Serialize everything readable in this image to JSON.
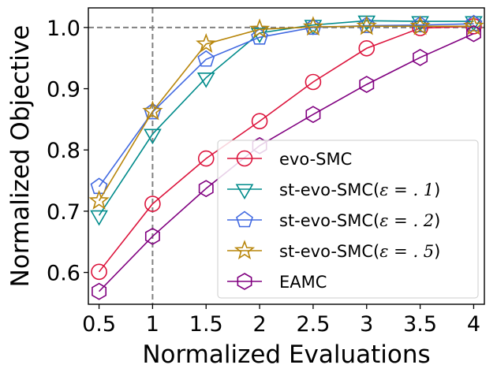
{
  "chart_data": {
    "type": "line",
    "title": "",
    "xlabel": "Normalized Evaluations",
    "ylabel": "Normalized Objective",
    "x": [
      0.5,
      1,
      1.5,
      2,
      2.5,
      3,
      3.5,
      4
    ],
    "x_tick_labels": [
      "0.5",
      "1",
      "1.5",
      "2",
      "2.5",
      "3",
      "3.5",
      "4"
    ],
    "y_ticks": [
      0.6,
      0.7,
      0.8,
      0.9,
      1.0
    ],
    "y_tick_labels": [
      "0.6",
      "0.7",
      "0.8",
      "0.9",
      "1.0"
    ],
    "xlim": [
      0.4,
      4.1
    ],
    "ylim": [
      0.548,
      1.032
    ],
    "grid": false,
    "reference_lines": [
      {
        "orientation": "horizontal",
        "value": 1.0,
        "style": "dashed",
        "color": "#808080"
      },
      {
        "orientation": "vertical",
        "value": 1.0,
        "style": "dashed",
        "color": "#808080"
      }
    ],
    "legend_position": "lower-right",
    "series": [
      {
        "name": "evo-SMC",
        "label_main": "evo-SMC",
        "label_math": "",
        "label_tail": "",
        "color": "#dc143c",
        "marker": "circle",
        "values": [
          0.601,
          0.712,
          0.786,
          0.847,
          0.911,
          0.966,
          0.999,
          1.002
        ]
      },
      {
        "name": "st-evo-SMC(ε = .1)",
        "label_main": "st-evo-SMC(",
        "label_math": "ε = . 1",
        "label_tail": ")",
        "color": "#008b8b",
        "marker": "triangle-down",
        "values": [
          0.693,
          0.826,
          0.918,
          0.991,
          1.004,
          1.011,
          1.01,
          1.01
        ]
      },
      {
        "name": "st-evo-SMC(ε = .2)",
        "label_main": "st-evo-SMC(",
        "label_math": "ε = . 2",
        "label_tail": ")",
        "color": "#4169e1",
        "marker": "pentagon",
        "values": [
          0.74,
          0.862,
          0.948,
          0.984,
          1.0,
          1.003,
          1.004,
          1.006
        ]
      },
      {
        "name": "st-evo-SMC(ε = .5)",
        "label_main": "st-evo-SMC(",
        "label_math": "ε = . 5",
        "label_tail": ")",
        "color": "#b8860b",
        "marker": "star",
        "values": [
          0.717,
          0.863,
          0.973,
          0.997,
          1.001,
          1.002,
          1.002,
          1.002
        ]
      },
      {
        "name": "EAMC",
        "label_main": "EAMC",
        "label_math": "",
        "label_tail": "",
        "color": "#800080",
        "marker": "hexagon",
        "values": [
          0.569,
          0.659,
          0.737,
          0.807,
          0.858,
          0.907,
          0.951,
          0.99
        ]
      }
    ]
  }
}
